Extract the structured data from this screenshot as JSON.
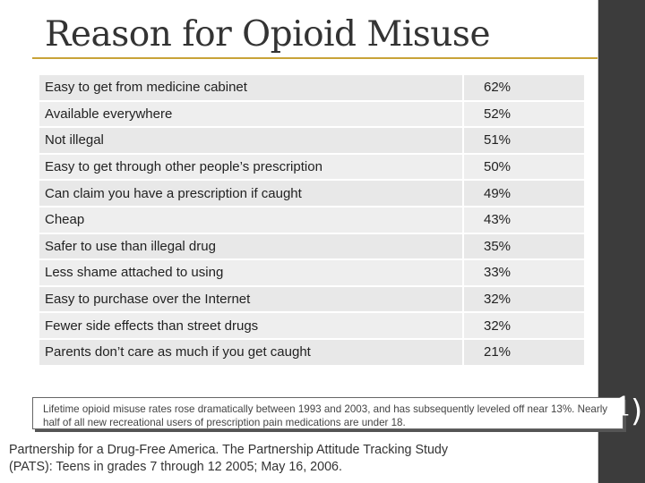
{
  "title": "Reason for Opioid Misuse",
  "rows": [
    {
      "reason": "Easy to get from medicine cabinet",
      "value": "62%"
    },
    {
      "reason": "Available everywhere",
      "value": "52%"
    },
    {
      "reason": "Not illegal",
      "value": "51%"
    },
    {
      "reason": "Easy to get through other people’s prescription",
      "value": "50%"
    },
    {
      "reason": "Can claim you have a prescription if caught",
      "value": "49%"
    },
    {
      "reason": "Cheap",
      "value": "43%"
    },
    {
      "reason": "Safer to use than illegal drug",
      "value": "35%"
    },
    {
      "reason": "Less shame attached to using",
      "value": "33%"
    },
    {
      "reason": "Easy to purchase over the Internet",
      "value": "32%"
    },
    {
      "reason": "Fewer side effects than street drugs",
      "value": "32%"
    },
    {
      "reason": "Parents don’t care as much if you get caught",
      "value": "21%"
    }
  ],
  "note": "Lifetime opioid misuse rates rose dramatically between 1993 and 2003, and has subsequently leveled off near 13%.  Nearly half of all new recreational users of prescription pain medications are under 18.",
  "citation": "Partnership for a Drug-Free America. The Partnership Attitude Tracking Study (PATS): Teens in grades 7 through 12 2005; May 16, 2006.",
  "page_number": "1"
}
